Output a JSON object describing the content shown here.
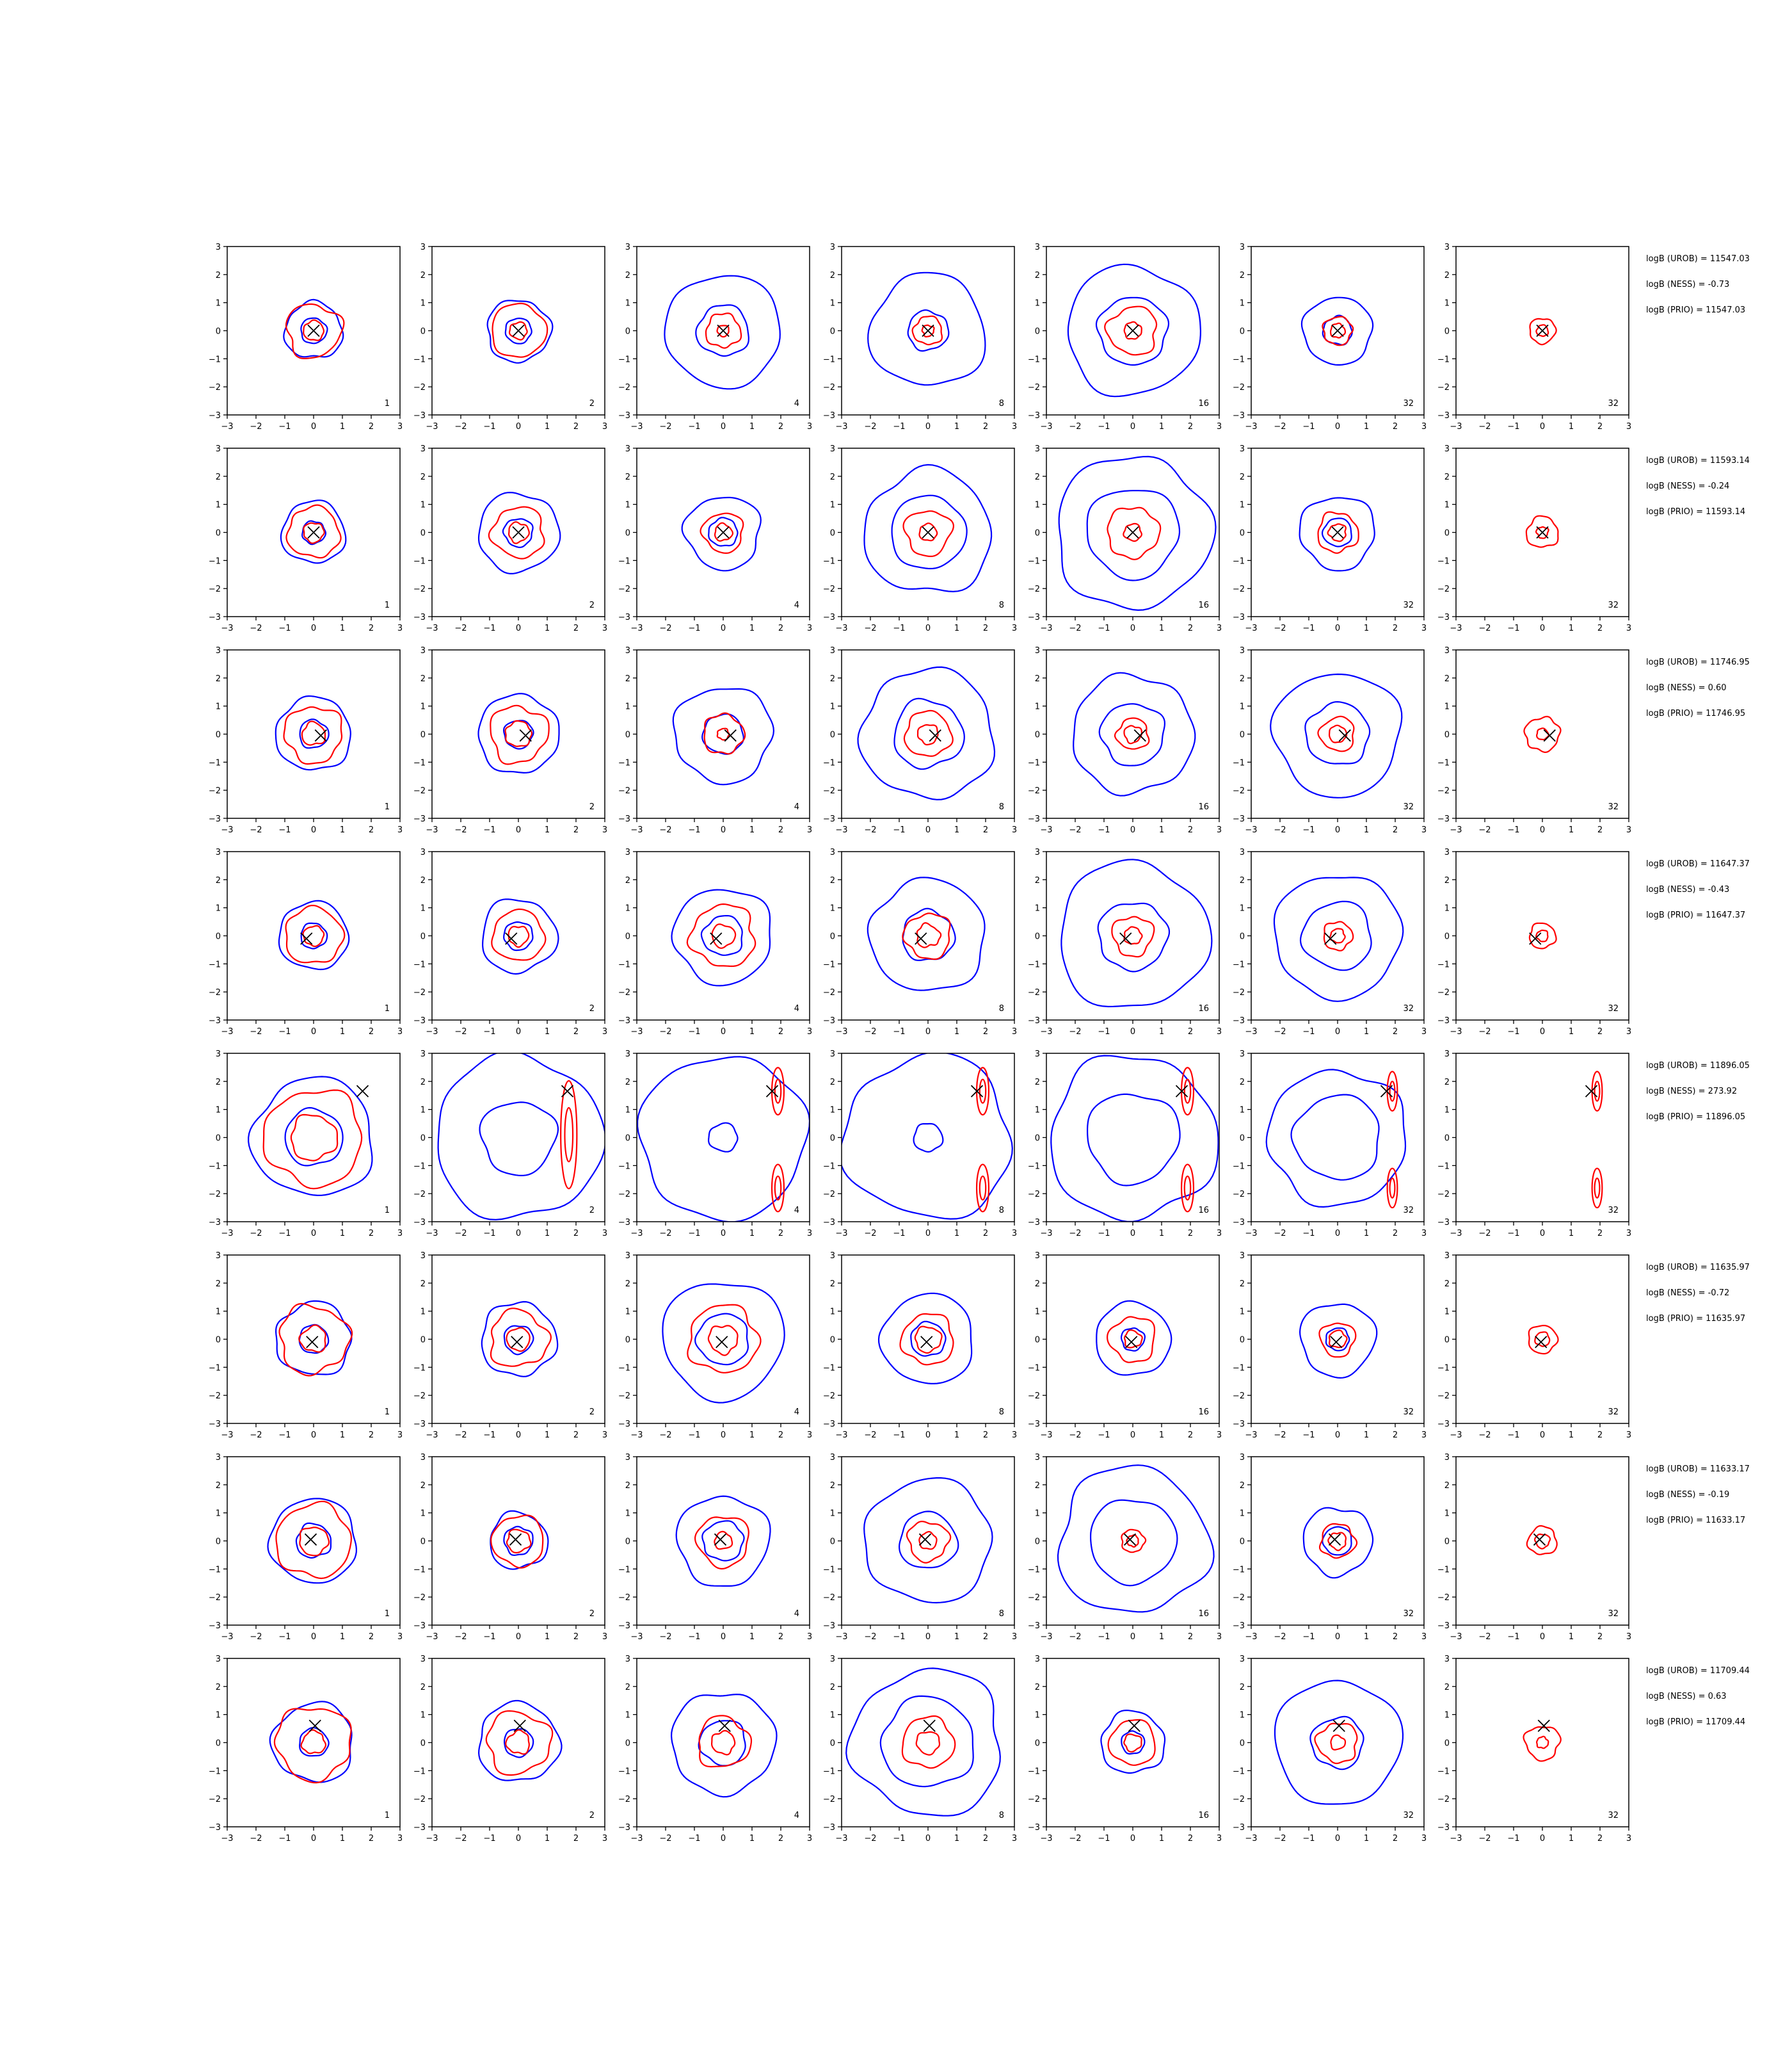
{
  "figure": {
    "axis_range": [
      -3,
      3
    ],
    "ticks": [
      -3,
      -2,
      -1,
      0,
      1,
      2,
      3
    ],
    "tick_labels": [
      "−3",
      "−2",
      "−1",
      "0",
      "1",
      "2",
      "3"
    ],
    "colors": {
      "blue": "#0000ff",
      "red": "#ff0000",
      "marker": "#000000"
    },
    "marker_symbol": "×"
  },
  "chart_data": [
    {
      "type": "contour-grid",
      "row": 1,
      "panel_labels": [
        "1",
        "2",
        "4",
        "8",
        "16",
        "32",
        "32"
      ],
      "marker": {
        "x": 0.0,
        "y": 0.0
      },
      "blue_radii": [
        [
          0.45,
          1.0
        ],
        [
          0.45,
          1.1
        ],
        [
          0.9,
          2.0
        ],
        [
          0.7,
          2.0
        ],
        [
          1.2,
          2.3
        ],
        [
          0.5,
          1.2
        ],
        []
      ],
      "red_radii": [
        [
          0.35,
          0.95
        ],
        [
          0.3,
          0.95
        ],
        [
          0.2,
          0.6
        ],
        [
          0.2,
          0.5
        ],
        [
          0.3,
          0.85
        ],
        [
          0.25,
          0.5
        ],
        [
          0.2,
          0.45
        ]
      ],
      "stats": [
        "logB (UROB) = 11547.03",
        "logB (NESS) = -0.73",
        "logB (PRIO) = 11547.03"
      ]
    },
    {
      "type": "contour-grid",
      "row": 2,
      "panel_labels": [
        "1",
        "2",
        "4",
        "8",
        "16",
        "32",
        "32"
      ],
      "marker": {
        "x": 0.0,
        "y": 0.0
      },
      "blue_radii": [
        [
          0.4,
          1.1
        ],
        [
          0.5,
          1.4
        ],
        [
          0.5,
          1.3
        ],
        [
          1.3,
          2.2
        ],
        [
          1.6,
          2.7
        ],
        [
          0.5,
          1.3
        ],
        []
      ],
      "red_radii": [
        [
          0.35,
          0.9
        ],
        [
          0.35,
          0.9
        ],
        [
          0.3,
          0.7
        ],
        [
          0.3,
          0.8
        ],
        [
          0.3,
          0.9
        ],
        [
          0.3,
          0.7
        ],
        [
          0.2,
          0.55
        ]
      ],
      "stats": [
        "logB (UROB) = 11593.14",
        "logB (NESS) = -0.24",
        "logB (PRIO) = 11593.14"
      ]
    },
    {
      "type": "contour-grid",
      "row": 3,
      "panel_labels": [
        "1",
        "2",
        "4",
        "8",
        "16",
        "32",
        "32"
      ],
      "marker": {
        "x": 0.25,
        "y": -0.05
      },
      "blue_radii": [
        [
          0.5,
          1.3
        ],
        [
          0.5,
          1.4
        ],
        [
          0.7,
          1.7
        ],
        [
          1.2,
          2.3
        ],
        [
          1.1,
          2.1
        ],
        [
          1.1,
          2.2
        ],
        []
      ],
      "red_radii": [
        [
          0.4,
          1.0
        ],
        [
          0.45,
          1.0
        ],
        [
          0.2,
          0.7
        ],
        [
          0.35,
          0.8
        ],
        [
          0.3,
          0.55
        ],
        [
          0.3,
          0.6
        ],
        [
          0.2,
          0.6
        ]
      ],
      "stats": [
        "logB (UROB) = 11746.95",
        "logB (NESS) = 0.60",
        "logB (PRIO) = 11746.95"
      ]
    },
    {
      "type": "contour-grid",
      "row": 4,
      "panel_labels": [
        "1",
        "2",
        "4",
        "8",
        "16",
        "32",
        "32"
      ],
      "marker": {
        "x": -0.25,
        "y": -0.1
      },
      "blue_radii": [
        [
          0.45,
          1.2
        ],
        [
          0.5,
          1.3
        ],
        [
          0.7,
          1.7
        ],
        [
          0.9,
          2.0
        ],
        [
          1.2,
          2.6
        ],
        [
          1.2,
          2.2
        ],
        []
      ],
      "red_radii": [
        [
          0.35,
          1.0
        ],
        [
          0.35,
          0.9
        ],
        [
          0.4,
          1.1
        ],
        [
          0.4,
          0.8
        ],
        [
          0.3,
          0.7
        ],
        [
          0.25,
          0.5
        ],
        [
          0.2,
          0.45
        ]
      ],
      "stats": [
        "logB (UROB) = 11647.37",
        "logB (NESS) = -0.43",
        "logB (PRIO) = 11647.37"
      ]
    },
    {
      "type": "contour-grid",
      "row": 5,
      "panel_labels": [
        "1",
        "2",
        "4",
        "8",
        "16",
        "32",
        "32"
      ],
      "marker": {
        "x": 1.7,
        "y": 1.65
      },
      "blue_radii": [
        [
          1.0,
          2.1
        ],
        [
          1.3,
          2.9
        ],
        [
          0.5,
          2.9
        ],
        [
          0.5,
          2.9
        ],
        [
          1.6,
          2.9
        ],
        [
          1.5,
          2.4
        ],
        []
      ],
      "red_radii": [
        [
          0.8,
          1.7
        ],
        [
          0.4,
          0.8
        ],
        [
          0.3,
          0.6
        ],
        [
          0.3,
          0.6
        ],
        [
          0.3,
          0.6
        ],
        [
          0.25,
          0.5
        ],
        [
          0.25,
          0.5
        ]
      ],
      "stats": [
        "logB (UROB) = 11896.05",
        "logB (NESS) = 273.92",
        "logB (PRIO) = 11896.05"
      ]
    },
    {
      "type": "contour-grid",
      "row": 6,
      "panel_labels": [
        "1",
        "2",
        "4",
        "8",
        "16",
        "32",
        "32"
      ],
      "marker": {
        "x": -0.05,
        "y": -0.1
      },
      "blue_radii": [
        [
          0.5,
          1.3
        ],
        [
          0.5,
          1.3
        ],
        [
          0.9,
          2.1
        ],
        [
          0.6,
          1.6
        ],
        [
          0.4,
          1.3
        ],
        [
          0.4,
          1.3
        ],
        []
      ],
      "red_radii": [
        [
          0.45,
          1.2
        ],
        [
          0.4,
          1.0
        ],
        [
          0.5,
          1.2
        ],
        [
          0.45,
          0.9
        ],
        [
          0.3,
          0.8
        ],
        [
          0.3,
          0.6
        ],
        [
          0.25,
          0.5
        ]
      ],
      "stats": [
        "logB (UROB) = 11635.97",
        "logB (NESS) = -0.72",
        "logB (PRIO) = 11635.97"
      ]
    },
    {
      "type": "contour-grid",
      "row": 7,
      "panel_labels": [
        "1",
        "2",
        "4",
        "8",
        "16",
        "32",
        "32"
      ],
      "marker": {
        "x": -0.1,
        "y": 0.05
      },
      "blue_radii": [
        [
          0.6,
          1.5
        ],
        [
          0.5,
          1.0
        ],
        [
          0.7,
          1.6
        ],
        [
          1.0,
          2.2
        ],
        [
          1.5,
          2.6
        ],
        [
          0.5,
          1.2
        ],
        []
      ],
      "red_radii": [
        [
          0.5,
          1.3
        ],
        [
          0.4,
          0.9
        ],
        [
          0.3,
          0.9
        ],
        [
          0.3,
          0.7
        ],
        [
          0.2,
          0.4
        ],
        [
          0.3,
          0.6
        ],
        [
          0.25,
          0.5
        ]
      ],
      "stats": [
        "logB (UROB) = 11633.17",
        "logB (NESS) = -0.19",
        "logB (PRIO) = 11633.17"
      ]
    },
    {
      "type": "contour-grid",
      "row": 8,
      "panel_labels": [
        "1",
        "2",
        "4",
        "8",
        "16",
        "32",
        "32"
      ],
      "marker": {
        "x": 0.05,
        "y": 0.6
      },
      "blue_radii": [
        [
          0.5,
          1.4
        ],
        [
          0.5,
          1.4
        ],
        [
          0.8,
          1.8
        ],
        [
          1.6,
          2.6
        ],
        [
          0.4,
          1.1
        ],
        [
          0.9,
          2.2
        ],
        []
      ],
      "red_radii": [
        [
          0.4,
          1.3
        ],
        [
          0.4,
          1.1
        ],
        [
          0.4,
          0.9
        ],
        [
          0.4,
          0.9
        ],
        [
          0.3,
          0.8
        ],
        [
          0.25,
          0.7
        ],
        [
          0.2,
          0.6
        ]
      ],
      "stats": [
        "logB (UROB) = 11709.44",
        "logB (NESS) = 0.63",
        "logB (PRIO) = 11709.44"
      ]
    }
  ]
}
